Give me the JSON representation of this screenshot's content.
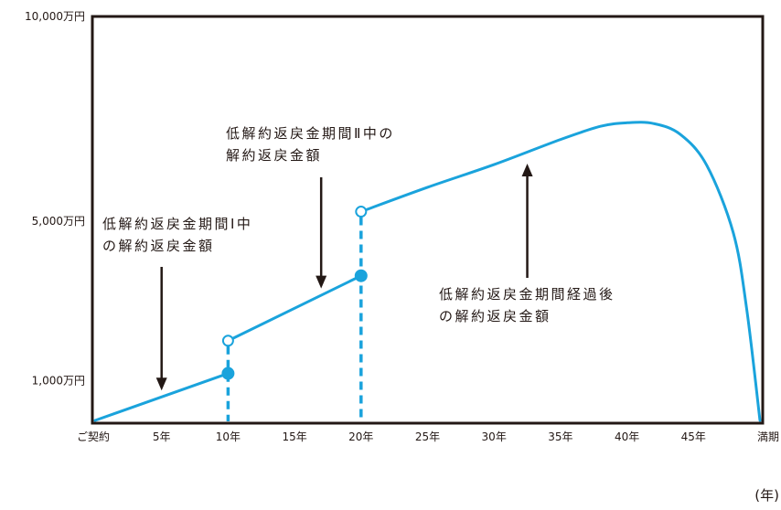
{
  "chart_data": {
    "type": "line",
    "title": "",
    "xlabel": "",
    "ylabel": "",
    "x_unit_label": "(年)",
    "y_ticks": [
      {
        "value": 1000,
        "label": "1,000万円"
      },
      {
        "value": 5000,
        "label": "5,000万円"
      },
      {
        "value": 10000,
        "label": "10,000万円"
      }
    ],
    "x_ticks": [
      {
        "value": 0,
        "label": "ご契約"
      },
      {
        "value": 5,
        "label": "5年"
      },
      {
        "value": 10,
        "label": "10年"
      },
      {
        "value": 15,
        "label": "15年"
      },
      {
        "value": 20,
        "label": "20年"
      },
      {
        "value": 25,
        "label": "25年"
      },
      {
        "value": 30,
        "label": "30年"
      },
      {
        "value": 35,
        "label": "35年"
      },
      {
        "value": 40,
        "label": "40年"
      },
      {
        "value": 45,
        "label": "45年"
      },
      {
        "value": 50,
        "label": "満期"
      }
    ],
    "series": [
      {
        "segments": [
          {
            "x": [
              0,
              10
            ],
            "y": [
              0,
              1180
            ]
          },
          {
            "x": [
              10,
              20
            ],
            "y": [
              2000,
              3630
            ]
          },
          {
            "x": [
              20,
              25,
              30,
              35,
              38,
              40,
              42,
              44,
              46,
              48,
              49,
              50
            ],
            "y": [
              5240,
              5850,
              6420,
              7050,
              7380,
              7470,
              7450,
              7180,
              6400,
              4700,
              2800,
              0
            ]
          }
        ]
      }
    ],
    "markers": [
      {
        "x": 10,
        "y": 1180,
        "style": "filled"
      },
      {
        "x": 10,
        "y": 2000,
        "style": "open"
      },
      {
        "x": 20,
        "y": 3630,
        "style": "filled"
      },
      {
        "x": 20,
        "y": 5240,
        "style": "open"
      }
    ],
    "dashed_drops": [
      {
        "x": 10,
        "y_top": 2000
      },
      {
        "x": 20,
        "y_top": 5240
      }
    ],
    "annotations": [
      {
        "lines": [
          "低解約返戻金期間Ⅰ中",
          "の解約返戻金額"
        ],
        "arrow_to": {
          "x": 5,
          "y": 590
        }
      },
      {
        "lines": [
          "低解約返戻金期間Ⅱ中の",
          "解約返戻金額"
        ],
        "arrow_to": {
          "x": 17,
          "y": 3150
        }
      },
      {
        "lines": [
          "低解約返戻金期間経過後",
          "の解約返戻金額"
        ],
        "arrow_to": {
          "x": 32.5,
          "y": 6650
        }
      }
    ],
    "xlim": [
      0,
      50
    ],
    "ylim": [
      0,
      10000
    ],
    "grid": false,
    "legend": "none",
    "line_color": "#1aa3dc",
    "frame_color": "#231815",
    "arrow_color": "#231815"
  }
}
